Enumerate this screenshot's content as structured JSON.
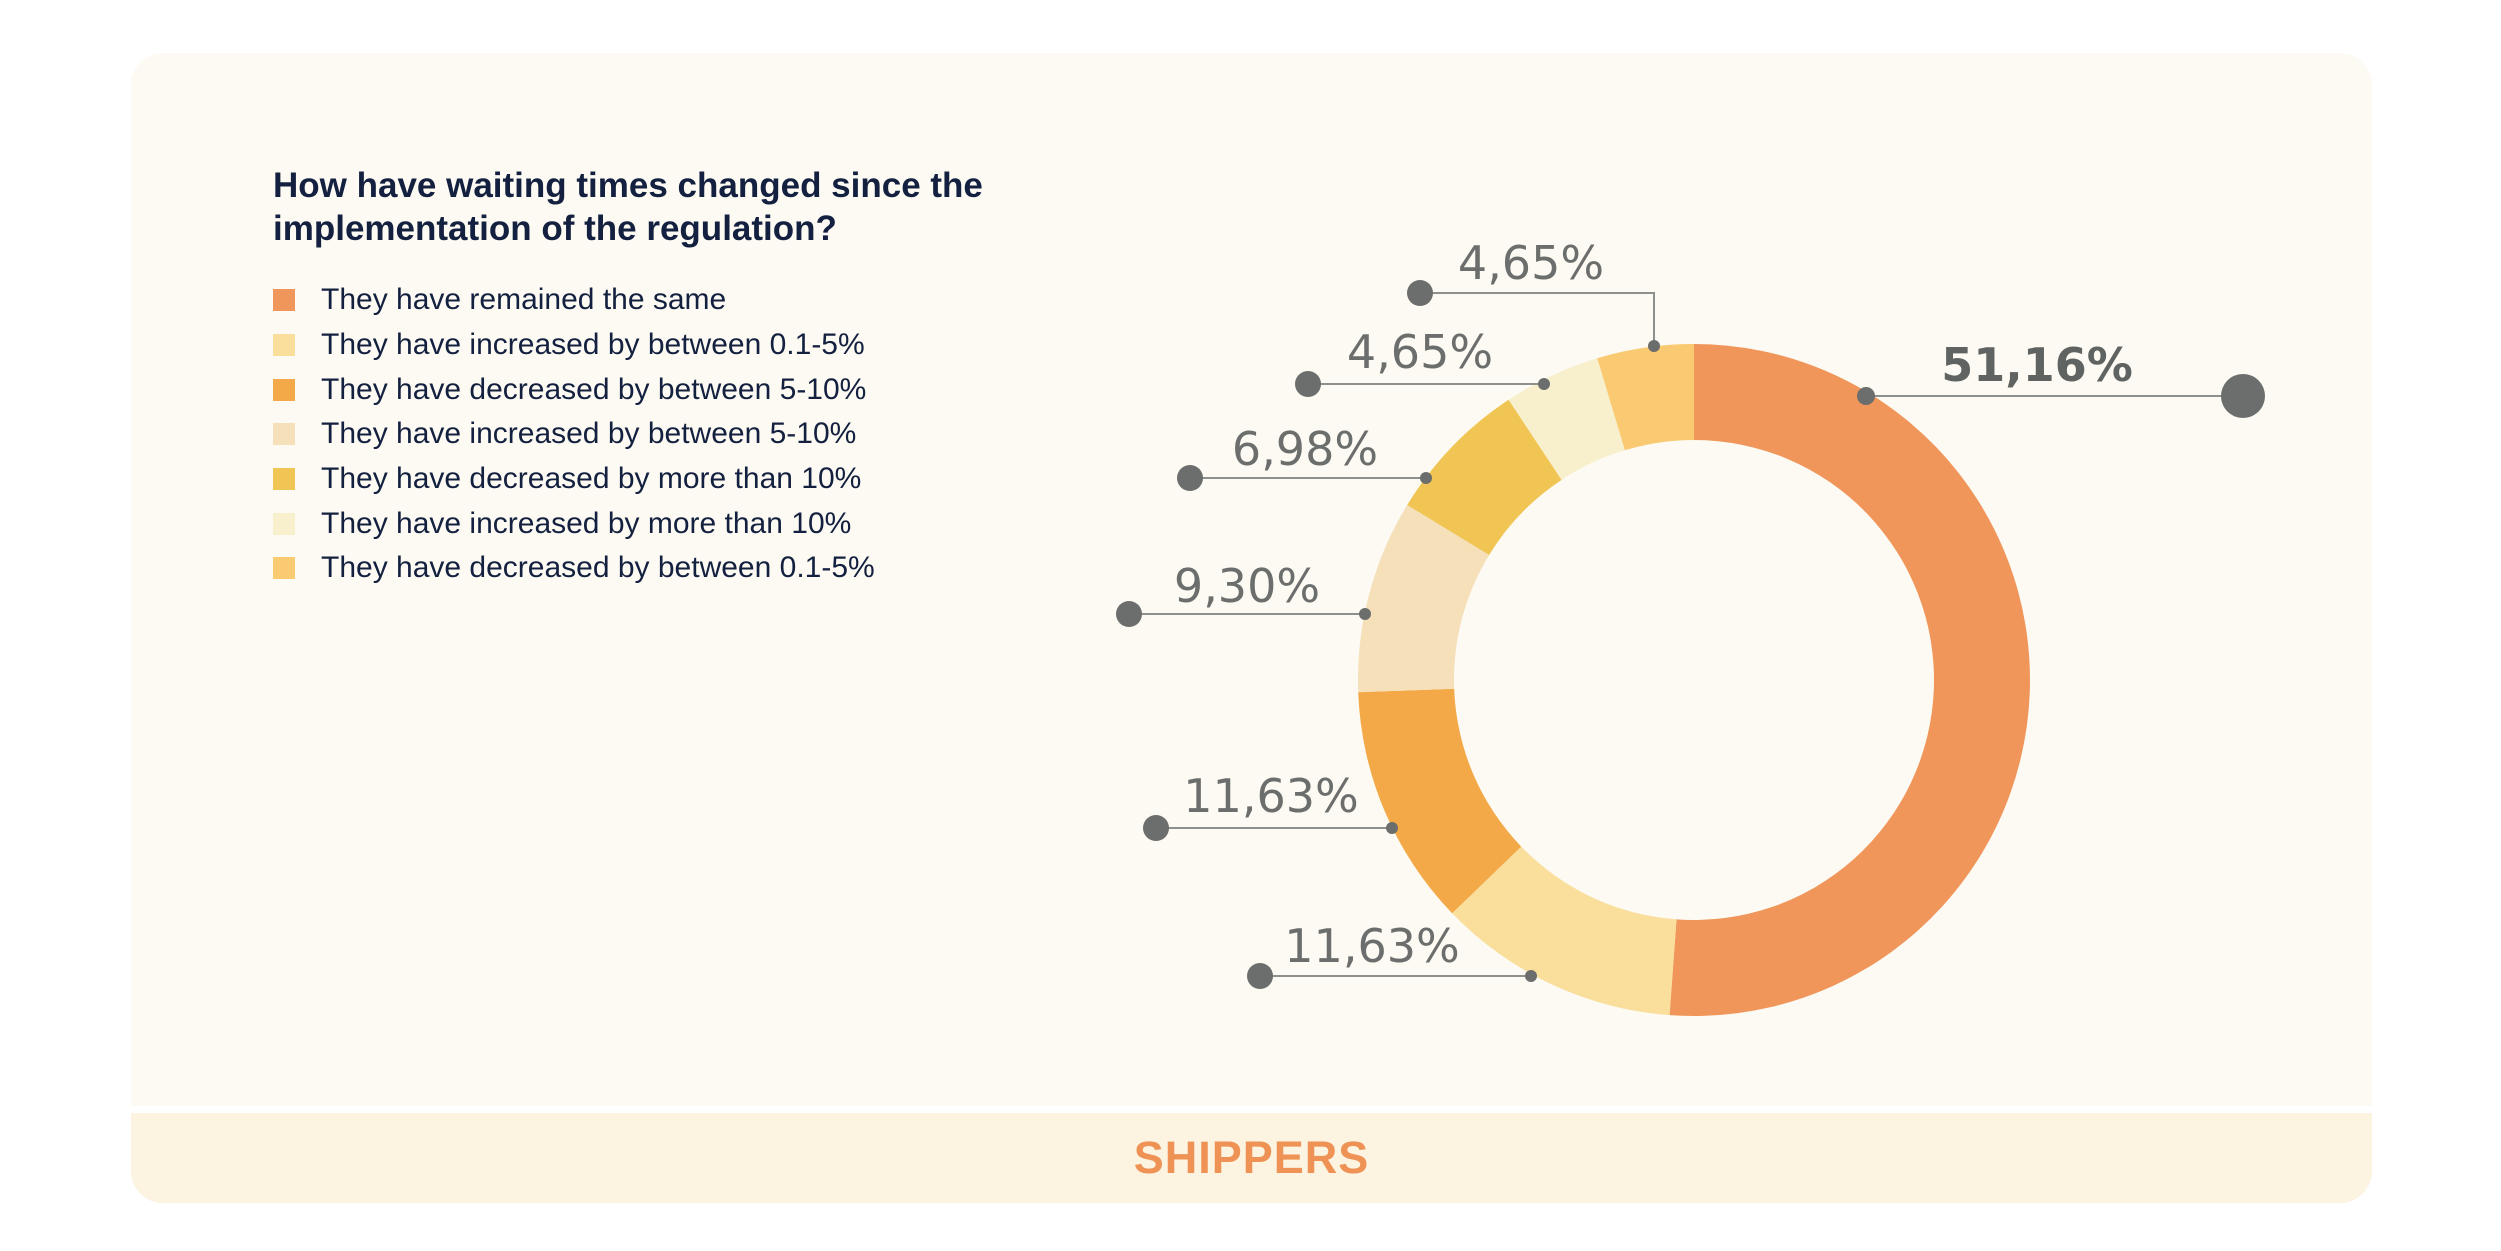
{
  "chart_data": {
    "type": "pie",
    "variant": "donut",
    "title": "How have waiting times changed since the implementation of the regulation?",
    "legend_position": "left",
    "slices": [
      {
        "label": "They have remained the same",
        "value": 51.16,
        "display": "51,16%",
        "color": "#F0965A"
      },
      {
        "label": "They have increased by between 0.1-5%",
        "value": 11.63,
        "display": "11,63%",
        "color": "#F9DE9C"
      },
      {
        "label": "They have decreased by between 5-10%",
        "value": 11.63,
        "display": "11,63%",
        "color": "#F3A947"
      },
      {
        "label": "They have increased by between 5-10%",
        "value": 9.3,
        "display": "9,30%",
        "color": "#F5E0BA"
      },
      {
        "label": "They have decreased by more than 10%",
        "value": 6.98,
        "display": "6,98%",
        "color": "#F0C553"
      },
      {
        "label": "They have increased by more than 10%",
        "value": 4.65,
        "display": "4,65%",
        "color": "#F8F0CD"
      },
      {
        "label": "They have decreased by between 0.1-5%",
        "value": 4.65,
        "display": "4,65%",
        "color": "#FACA72"
      }
    ]
  },
  "footer": {
    "label": "SHIPPERS"
  },
  "colors": {
    "title": "#13203F",
    "footer_text": "#EE9355",
    "card_bg": "#FCFAF2",
    "footer_bg": "#FCF3E0",
    "label_gray": "#6B6E6C"
  }
}
